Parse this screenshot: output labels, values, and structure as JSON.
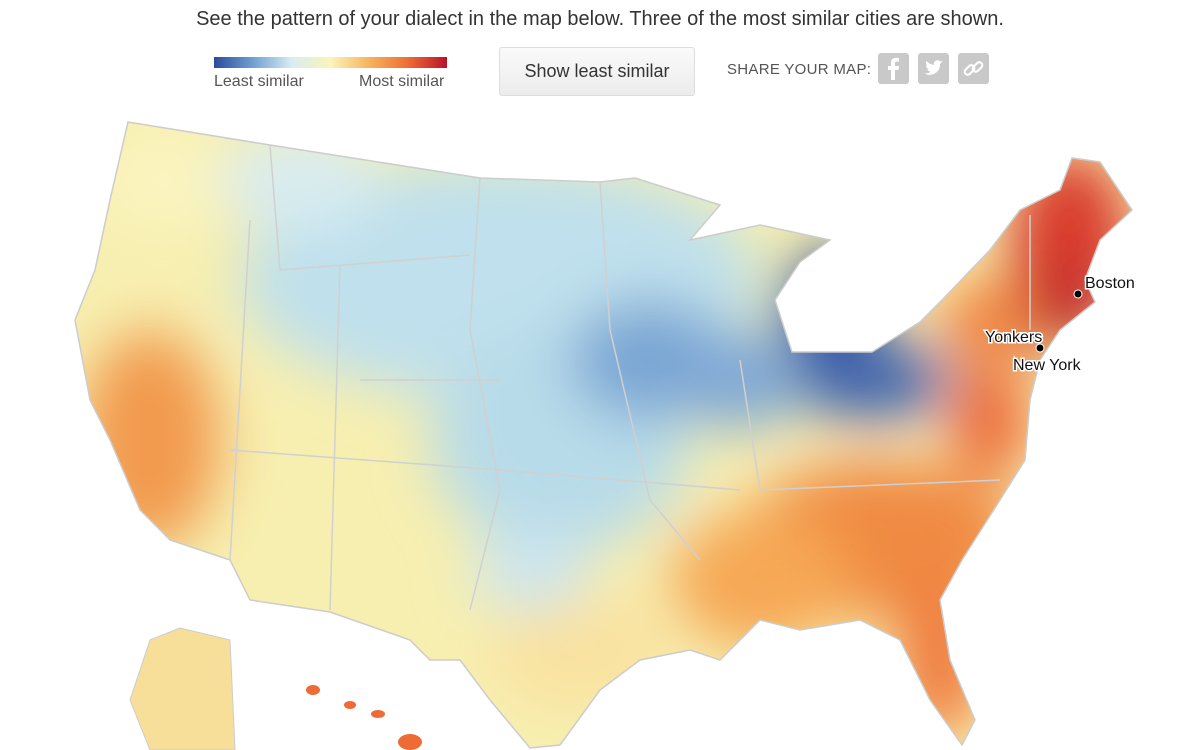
{
  "header": {
    "intro": "See the pattern of your dialect in the map below. Three of the most similar cities are shown."
  },
  "legend": {
    "min_label": "Least similar",
    "max_label": "Most similar"
  },
  "button": {
    "label": "Show least similar"
  },
  "share": {
    "label": "SHARE YOUR MAP:"
  },
  "cities": [
    {
      "label": "Boston"
    },
    {
      "label": "Yonkers"
    },
    {
      "label": "New York"
    }
  ]
}
